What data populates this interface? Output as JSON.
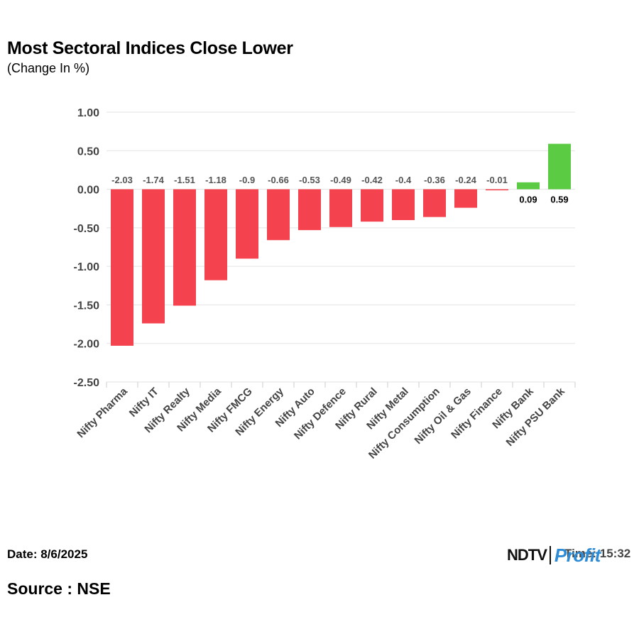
{
  "title": "Most Sectoral Indices Close Lower",
  "subtitle": "(Change In %)",
  "footer": {
    "date": "Date: 8/6/2025",
    "source": "Source : NSE",
    "time": "Time: 15:32",
    "logo_ndtv": "NDTV",
    "logo_profit": "Profit"
  },
  "colors": {
    "negative": "#f4434f",
    "positive": "#5ccb44",
    "grid": "#e3e3e3",
    "axis_text": "#444444"
  },
  "chart_data": {
    "type": "bar",
    "title": "Most Sectoral Indices Close Lower",
    "subtitle": "(Change In %)",
    "categories": [
      "Nifty Pharma",
      "Nifty IT",
      "Nifty Realty",
      "Nifty Media",
      "Nifty FMCG",
      "Nifty Energy",
      "Nifty Auto",
      "Nifty Defence",
      "Nifty Rural",
      "Nifty Metal",
      "Nifty Consumption",
      "Nifty Oil & Gas",
      "Nifty Finance",
      "Nifty Bank",
      "Nifty PSU Bank"
    ],
    "values": [
      -2.03,
      -1.74,
      -1.51,
      -1.18,
      -0.9,
      -0.66,
      -0.53,
      -0.49,
      -0.42,
      -0.4,
      -0.36,
      -0.24,
      -0.01,
      0.09,
      0.59
    ],
    "data_labels": [
      "-2.03",
      "-1.74",
      "-1.51",
      "-1.18",
      "-0.9",
      "-0.66",
      "-0.53",
      "-0.49",
      "-0.42",
      "-0.4",
      "-0.36",
      "-0.24",
      "-0.01",
      "0.09",
      "0.59"
    ],
    "yticks": [
      1.0,
      0.5,
      0.0,
      -0.5,
      -1.0,
      -1.5,
      -2.0,
      -2.5
    ],
    "ytick_labels": [
      "1.00",
      "0.50",
      "0.00",
      "-0.50",
      "-1.00",
      "-1.50",
      "-2.00",
      "-2.50"
    ],
    "ylim": [
      -2.5,
      1.0
    ],
    "grid": true,
    "legend": "none"
  }
}
